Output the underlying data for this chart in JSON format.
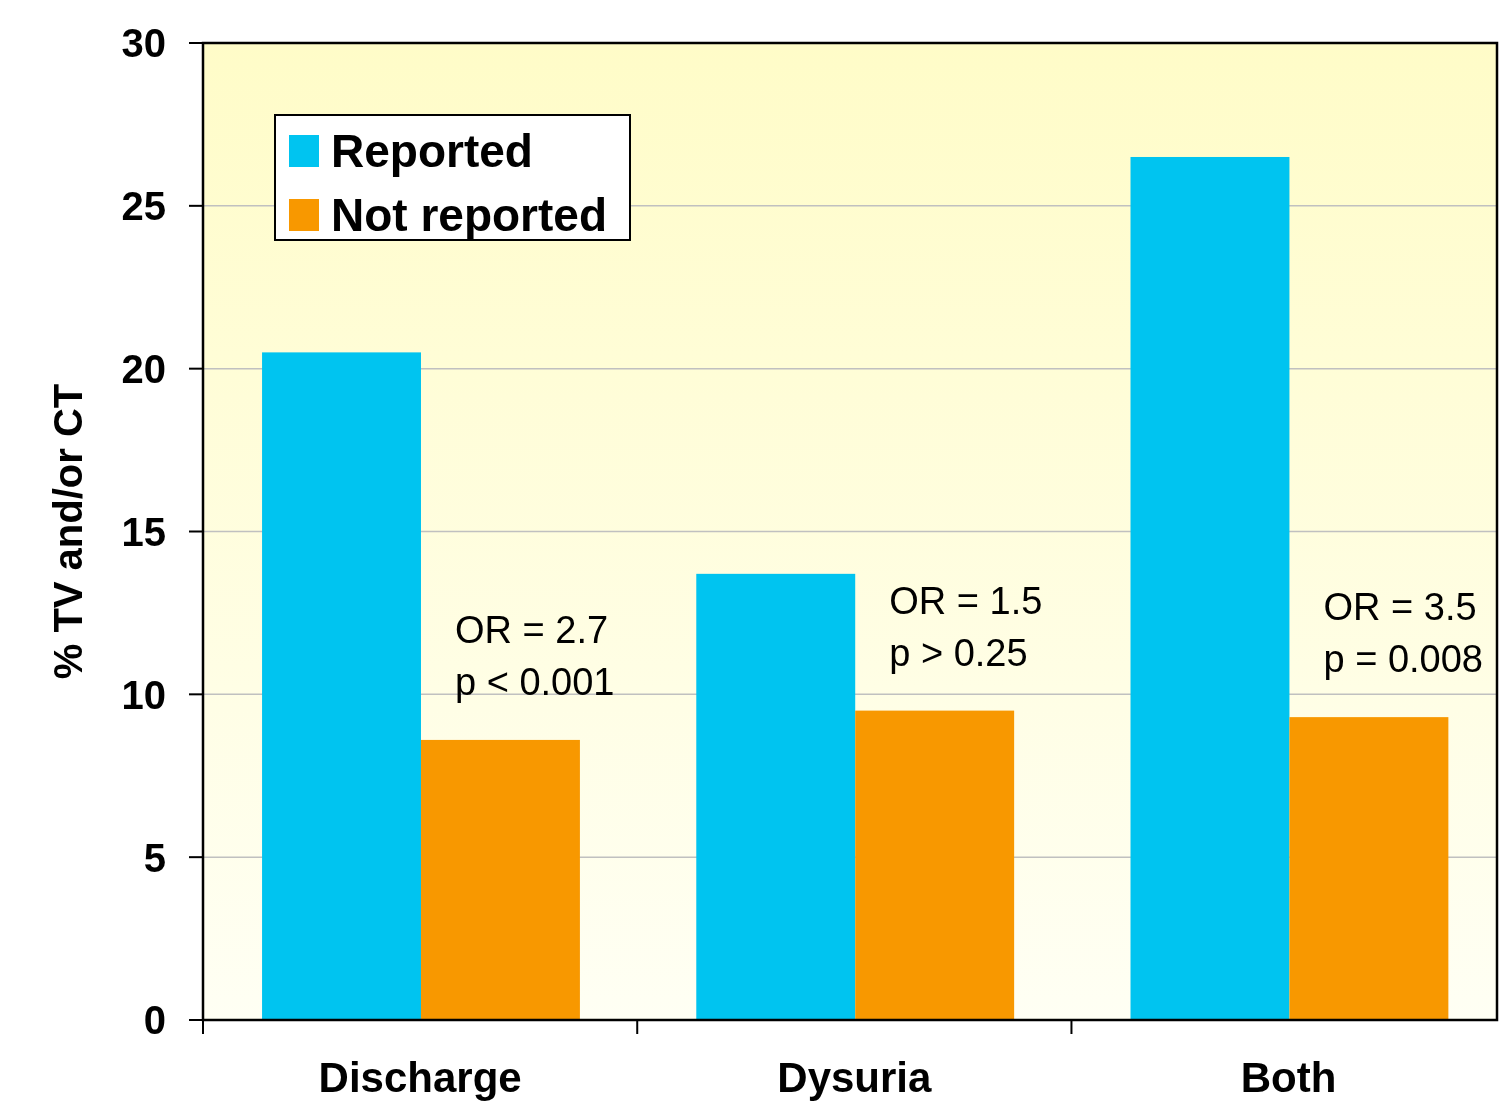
{
  "chart_data": {
    "type": "bar",
    "ylabel": "% TV and/or CT",
    "categories": [
      "Discharge",
      "Dysuria",
      "Both"
    ],
    "series": [
      {
        "name": "Reported",
        "color": "#00c4f0",
        "values": [
          20.5,
          13.7,
          26.5
        ]
      },
      {
        "name": "Not reported",
        "color": "#f89800",
        "values": [
          8.6,
          9.5,
          9.3
        ]
      }
    ],
    "ylim": [
      0,
      30
    ],
    "yticks": [
      0,
      5,
      10,
      15,
      20,
      25,
      30
    ],
    "grid": "y",
    "legend": "top left",
    "annotations": [
      "OR = 2.7",
      "p < 0.001",
      "OR = 1.5",
      "p > 0.25",
      "OR = 3.5",
      "p = 0.008"
    ]
  }
}
